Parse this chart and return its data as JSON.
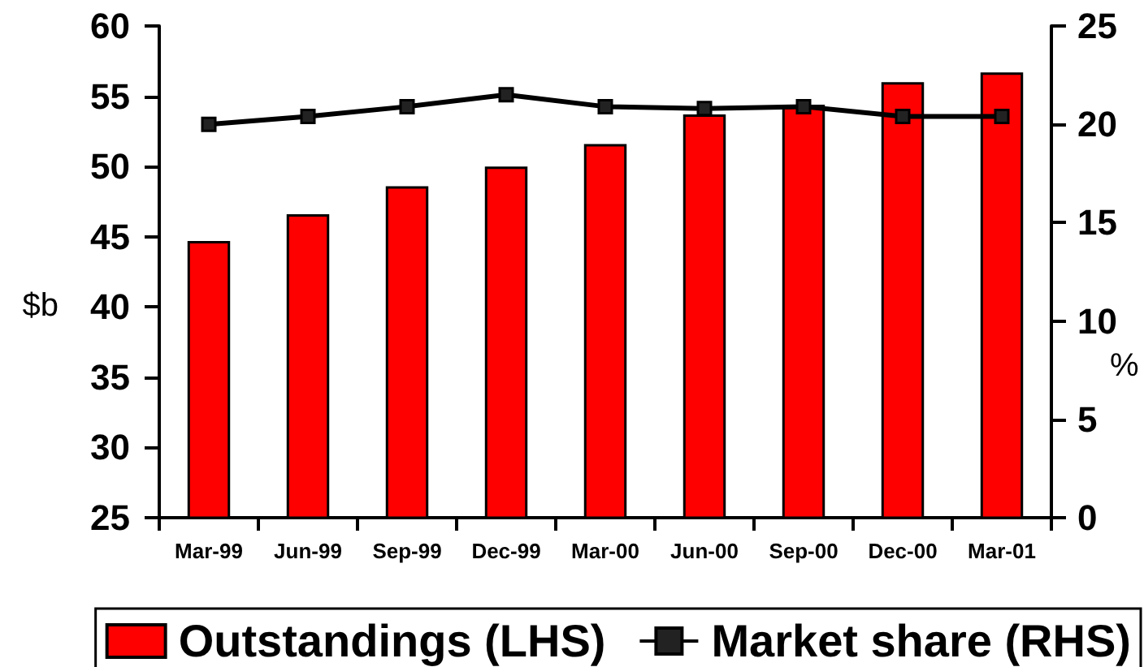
{
  "chart_data": {
    "type": "bar",
    "categories": [
      "Mar-99",
      "Jun-99",
      "Sep-99",
      "Dec-99",
      "Mar-00",
      "Jun-00",
      "Sep-00",
      "Dec-00",
      "Mar-01"
    ],
    "series": [
      {
        "name": "Outstandings (LHS)",
        "color": "#ff0000",
        "values": [
          44.7,
          46.6,
          48.6,
          50.0,
          51.6,
          53.7,
          54.4,
          56.0,
          56.7
        ]
      },
      {
        "name": "Market share (RHS)",
        "type": "line",
        "axis": "y2",
        "color": "#000000",
        "values": [
          20.0,
          20.4,
          20.9,
          21.5,
          20.9,
          20.8,
          20.9,
          20.4,
          20.4
        ]
      }
    ],
    "ylabel": "$b",
    "y2label": "%",
    "ylim": [
      25,
      60
    ],
    "yticks": [
      25,
      30,
      35,
      40,
      45,
      50,
      55,
      60
    ],
    "y2lim": [
      0,
      25
    ],
    "y2ticks": [
      0,
      5,
      10,
      15,
      20,
      25
    ],
    "legend": "bottom",
    "marker": "square",
    "line_style": "solid"
  }
}
